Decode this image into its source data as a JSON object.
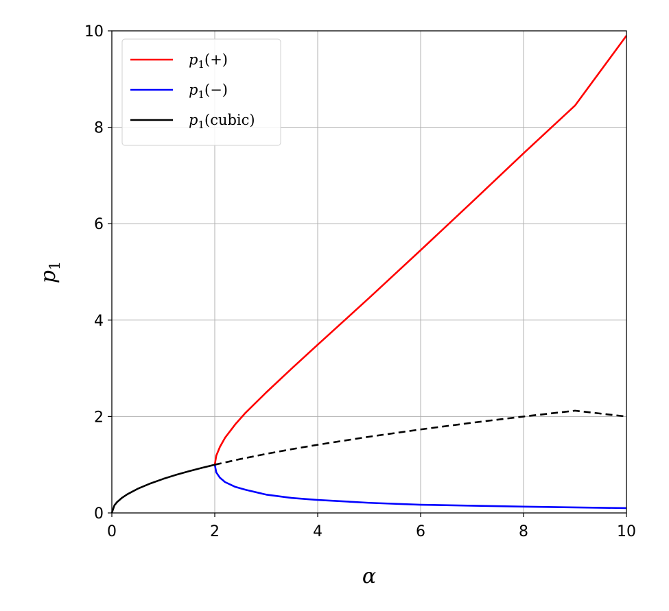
{
  "chart_data": {
    "type": "line",
    "title": "",
    "xlabel": "α",
    "ylabel_base": "p",
    "ylabel_sub": "1",
    "xlim": [
      0,
      10
    ],
    "ylim": [
      0,
      10
    ],
    "xticks": [
      0,
      2,
      4,
      6,
      8,
      10
    ],
    "yticks": [
      0,
      2,
      4,
      6,
      8,
      10
    ],
    "x_tick_labels": [
      "0",
      "2",
      "4",
      "6",
      "8",
      "10"
    ],
    "y_tick_labels": [
      "0",
      "2",
      "4",
      "6",
      "8",
      "10"
    ],
    "grid": true,
    "legend_position": "top-left",
    "series": [
      {
        "name_base": "p",
        "name_sub": "1",
        "name_suffix": "(+)",
        "color": "#ff0000",
        "style": "solid",
        "x": [
          2.0,
          2.03,
          2.1,
          2.2,
          2.4,
          2.6,
          3.0,
          3.5,
          4.0,
          5.0,
          6.0,
          7.0,
          8.0,
          9.0,
          10.0
        ],
        "y": [
          1.0,
          1.19,
          1.37,
          1.56,
          1.84,
          2.08,
          2.5,
          3.0,
          3.49,
          4.46,
          5.45,
          6.45,
          7.46,
          8.45,
          9.9
        ]
      },
      {
        "name_base": "p",
        "name_sub": "1",
        "name_suffix": "(−)",
        "color": "#0000ff",
        "style": "solid",
        "x": [
          2.0,
          2.03,
          2.1,
          2.2,
          2.4,
          2.6,
          3.0,
          3.5,
          4.0,
          5.0,
          6.0,
          7.0,
          8.0,
          9.0,
          10.0
        ],
        "y": [
          1.0,
          0.84,
          0.73,
          0.64,
          0.54,
          0.48,
          0.38,
          0.31,
          0.27,
          0.21,
          0.17,
          0.15,
          0.13,
          0.115,
          0.1
        ]
      },
      {
        "name_base": "p",
        "name_sub": "1",
        "name_suffix": "(cubic)",
        "color": "#000000",
        "style": "solid",
        "x": [
          0.0,
          0.05,
          0.1,
          0.2,
          0.3,
          0.5,
          0.75,
          1.0,
          1.25,
          1.5,
          1.75,
          2.0
        ],
        "y": [
          0.0,
          0.158,
          0.224,
          0.316,
          0.387,
          0.5,
          0.612,
          0.707,
          0.791,
          0.866,
          0.935,
          1.0
        ]
      },
      {
        "color": "#000000",
        "style": "dashed",
        "x": [
          2.0,
          2.5,
          3.0,
          3.5,
          4.0,
          5.0,
          6.0,
          7.0,
          8.0,
          9.0,
          10.0
        ],
        "y": [
          1.0,
          1.118,
          1.225,
          1.323,
          1.414,
          1.581,
          1.732,
          1.871,
          2.0,
          2.121,
          2.0
        ]
      }
    ]
  }
}
